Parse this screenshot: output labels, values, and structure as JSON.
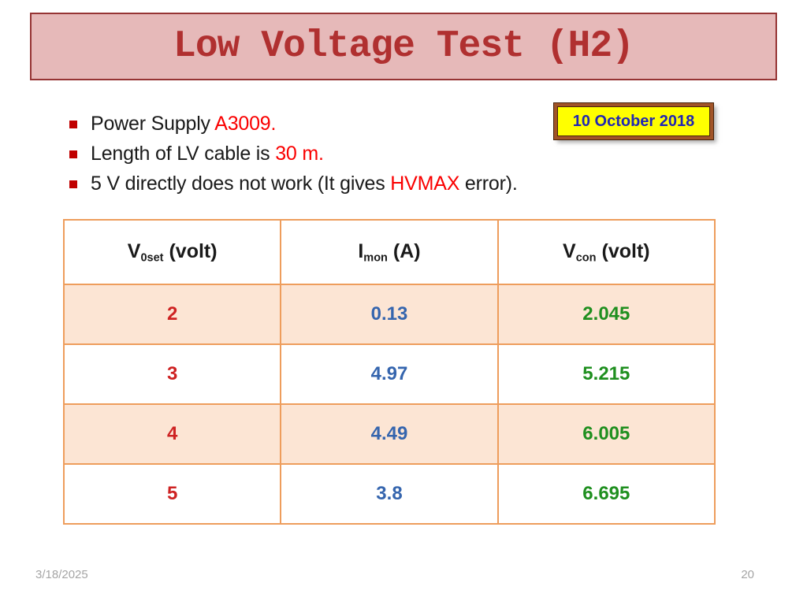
{
  "slide": {
    "title": "Low Voltage Test (H2)",
    "date_badge": "10 October 2018",
    "footer": {
      "date": "3/18/2025",
      "page_number": "20"
    }
  },
  "bullets": [
    {
      "segments": [
        {
          "text": "Power Supply "
        },
        {
          "text": "A3009."
        }
      ]
    },
    {
      "segments": [
        {
          "text": "Length of LV cable is "
        },
        {
          "text": "30 m."
        }
      ]
    },
    {
      "segments": [
        {
          "text": "5 V directly does not work (It gives "
        },
        {
          "text": "HVMAX"
        },
        {
          "text": " error)."
        }
      ]
    }
  ],
  "table": {
    "headers": [
      {
        "base": "V",
        "sub": "0set",
        "unit": "(volt)"
      },
      {
        "base": "I",
        "sub": "mon",
        "unit": "(A)"
      },
      {
        "base": "V",
        "sub": "con",
        "unit": "(volt)"
      }
    ],
    "rows": [
      {
        "cells": [
          "2",
          "0.13",
          "2.045"
        ]
      },
      {
        "cells": [
          "3",
          "4.97",
          "5.215"
        ]
      },
      {
        "cells": [
          "4",
          "4.49",
          "6.005"
        ]
      },
      {
        "cells": [
          "5",
          "3.8",
          "6.695"
        ]
      }
    ]
  },
  "colors": {
    "banner_bg": "#E6B9B9",
    "banner_border": "#963434",
    "banner_text": "#B03030",
    "bullet_square": "#C00000",
    "highlight_red": "#FA0000",
    "badge_bg": "#FFFF00",
    "badge_border": "#A15428",
    "badge_text": "#2026B4",
    "table_border": "#EE9D5C",
    "row_shade": "#FCE5D4",
    "column_red": "#CE2222",
    "column_blue": "#3565AE",
    "column_green": "#1F8F1F"
  }
}
